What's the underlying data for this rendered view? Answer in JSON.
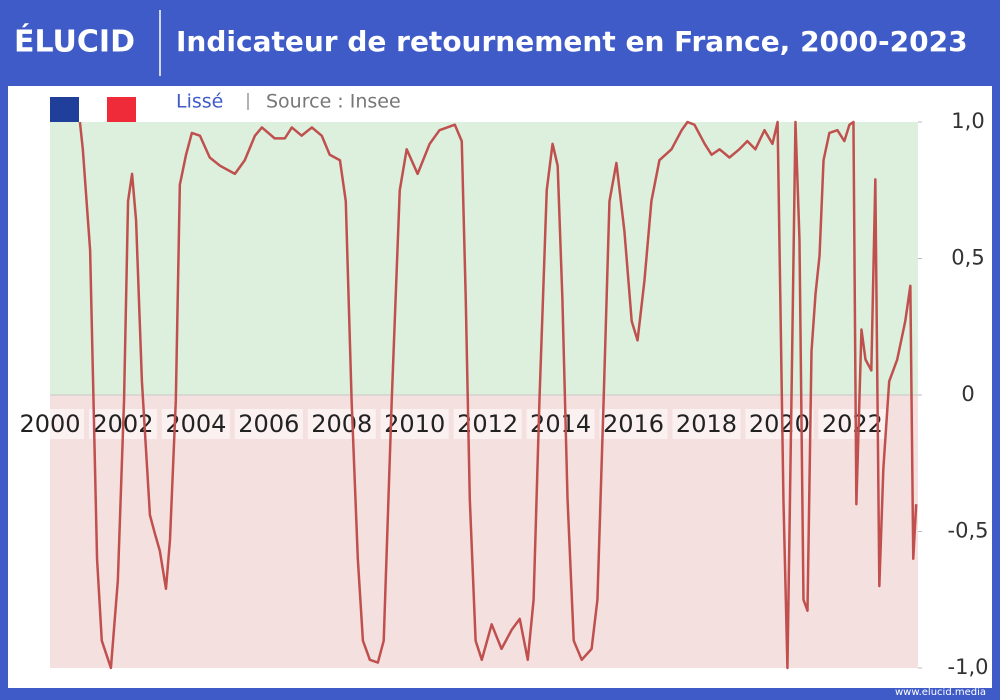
{
  "brand": "ÉLUCID",
  "footer": "www.elucid.media",
  "chart_data": {
    "type": "line",
    "title": "Indicateur de retournement en France, 2000-2023",
    "subtitle": "Lissé",
    "source": "Source : Insee",
    "color": "#c0504d",
    "xlim": [
      2000,
      2023.8
    ],
    "xticks": [
      2000,
      2002,
      2004,
      2006,
      2008,
      2010,
      2012,
      2014,
      2016,
      2018,
      2020,
      2022
    ],
    "ylim": [
      -1,
      1
    ],
    "yticks": [
      {
        "value": -1,
        "label": "-1,0"
      },
      {
        "value": -0.5,
        "label": "-0,5"
      },
      0,
      {
        "value": 0.5,
        "label": "0,5"
      },
      {
        "value": 1,
        "label": "1,0"
      }
    ],
    "x": [
      2000.82,
      2000.9,
      2001.1,
      2001.29,
      2001.42,
      2001.67,
      2001.86,
      2002.03,
      2002.14,
      2002.25,
      2002.36,
      2002.52,
      2002.74,
      2002.88,
      2003.01,
      2003.18,
      2003.29,
      2003.45,
      2003.56,
      2003.73,
      2003.89,
      2004.11,
      2004.38,
      2004.66,
      2005.07,
      2005.34,
      2005.62,
      2005.81,
      2006.16,
      2006.44,
      2006.63,
      2006.9,
      2007.18,
      2007.45,
      2007.67,
      2007.95,
      2008.11,
      2008.27,
      2008.44,
      2008.58,
      2008.77,
      2008.99,
      2009.15,
      2009.37,
      2009.59,
      2009.78,
      2010.08,
      2010.41,
      2010.68,
      2011.1,
      2011.29,
      2011.4,
      2011.51,
      2011.67,
      2011.84,
      2012.11,
      2012.38,
      2012.66,
      2012.88,
      2013.1,
      2013.26,
      2013.42,
      2013.62,
      2013.78,
      2013.92,
      2014.05,
      2014.19,
      2014.36,
      2014.58,
      2014.85,
      2015.01,
      2015.18,
      2015.34,
      2015.53,
      2015.75,
      2015.95,
      2016.11,
      2016.3,
      2016.49,
      2016.71,
      2017.04,
      2017.32,
      2017.48,
      2017.67,
      2017.95,
      2018.14,
      2018.36,
      2018.63,
      2018.9,
      2019.12,
      2019.34,
      2019.59,
      2019.81,
      2019.95,
      2020.11,
      2020.22,
      2020.33,
      2020.44,
      2020.55,
      2020.66,
      2020.77,
      2020.88,
      2020.99,
      2021.1,
      2021.21,
      2021.37,
      2021.59,
      2021.78,
      2021.92,
      2022.03,
      2022.11,
      2022.25,
      2022.36,
      2022.52,
      2022.63,
      2022.74,
      2022.85,
      2023.01,
      2023.23,
      2023.45,
      2023.59,
      2023.67,
      2023.75
    ],
    "values": [
      1.0,
      0.9,
      0.53,
      -0.6,
      -0.9,
      -1.0,
      -0.68,
      -0.02,
      0.71,
      0.81,
      0.64,
      0.05,
      -0.44,
      -0.51,
      -0.57,
      -0.71,
      -0.53,
      -0.02,
      0.77,
      0.88,
      0.96,
      0.95,
      0.87,
      0.84,
      0.81,
      0.86,
      0.95,
      0.98,
      0.94,
      0.94,
      0.98,
      0.95,
      0.98,
      0.95,
      0.88,
      0.86,
      0.71,
      -0.02,
      -0.6,
      -0.9,
      -0.97,
      -0.98,
      -0.9,
      -0.02,
      0.75,
      0.9,
      0.81,
      0.92,
      0.97,
      0.99,
      0.93,
      0.35,
      -0.38,
      -0.9,
      -0.97,
      -0.84,
      -0.93,
      -0.86,
      -0.82,
      -0.97,
      -0.75,
      -0.02,
      0.75,
      0.92,
      0.84,
      0.35,
      -0.38,
      -0.9,
      -0.97,
      -0.93,
      -0.75,
      -0.02,
      0.71,
      0.85,
      0.6,
      0.27,
      0.2,
      0.42,
      0.71,
      0.86,
      0.9,
      0.97,
      1.0,
      0.99,
      0.92,
      0.88,
      0.9,
      0.87,
      0.9,
      0.93,
      0.9,
      0.97,
      0.92,
      1.0,
      -0.38,
      -1.0,
      -0.02,
      1.0,
      0.57,
      -0.75,
      -0.79,
      0.16,
      0.37,
      0.51,
      0.86,
      0.96,
      0.97,
      0.93,
      0.99,
      1.0,
      -0.4,
      0.24,
      0.13,
      0.09,
      0.79,
      -0.7,
      -0.27,
      0.05,
      0.13,
      0.27,
      0.4,
      -0.6,
      -0.4
    ]
  }
}
